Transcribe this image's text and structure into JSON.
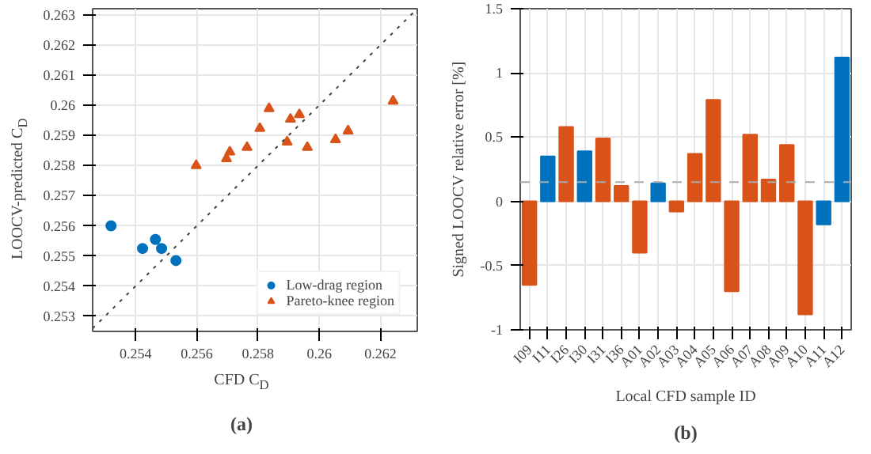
{
  "chart_data": [
    {
      "type": "scatter",
      "xlabel": "CFD C$_{D}$",
      "ylabel": "LOOCV-predicted C$_{D}$",
      "annotations": [
        "(a)"
      ],
      "xlim": [
        0.2526,
        0.2632
      ],
      "ylim": [
        0.2525,
        0.2632
      ],
      "xticks": [
        0.254,
        0.256,
        0.258,
        {
          "value": 0.26,
          "label": "0.26"
        },
        0.262
      ],
      "yticks": [
        0.253,
        0.254,
        0.255,
        0.256,
        0.257,
        0.258,
        0.259,
        {
          "value": 0.26,
          "label": "0.26"
        },
        0.261,
        0.262,
        0.263
      ],
      "grid": true,
      "legend": "bottom right",
      "series": [
        {
          "name": "Low-drag region",
          "color": "#0072bd",
          "marker": "circle",
          "x": [
            0.2532,
            0.25423,
            0.25465,
            0.25485,
            0.25532
          ],
          "values": [
            0.256,
            0.25525,
            0.25555,
            0.25525,
            0.25485
          ]
        },
        {
          "name": "Pareto-knee region",
          "color": "#d95319",
          "marker": "triangle",
          "x": [
            0.25598,
            0.25697,
            0.25708,
            0.25764,
            0.25806,
            0.25836,
            0.25895,
            0.25906,
            0.25935,
            0.25961,
            0.26053,
            0.26094,
            0.26241
          ],
          "values": [
            0.258,
            0.25823,
            0.25845,
            0.2586,
            0.25923,
            0.25989,
            0.25878,
            0.25954,
            0.25969,
            0.2586,
            0.25886,
            0.25915,
            0.26014
          ]
        },
        {
          "type": "line",
          "color": "#404040",
          "line_style": "dotted",
          "x": [
            0.2526,
            0.2632
          ],
          "values": [
            0.2526,
            0.2632
          ]
        }
      ]
    },
    {
      "type": "bar",
      "xlabel": "Local CFD sample ID",
      "ylabel": "Signed LOOCV relative error [%]",
      "annotations": [
        "(b)"
      ],
      "categories": [
        "I09",
        "I11",
        "I26",
        "I30",
        "I31",
        "I36",
        "A01",
        "A02",
        "A03",
        "A04",
        "A05",
        "A06",
        "A07",
        "A08",
        "A09",
        "A10",
        "A11",
        "A12"
      ],
      "values": [
        -0.65,
        0.35,
        0.58,
        0.39,
        0.49,
        0.12,
        -0.4,
        0.14,
        -0.08,
        0.37,
        0.79,
        -0.7,
        0.52,
        0.17,
        0.44,
        -0.88,
        -0.18,
        1.12
      ],
      "colors": [
        "#d95319",
        "#0072bd",
        "#d95319",
        "#0072bd",
        "#d95319",
        "#d95319",
        "#d95319",
        "#0072bd",
        "#d95319",
        "#d95319",
        "#d95319",
        "#d95319",
        "#d95319",
        "#d95319",
        "#d95319",
        "#d95319",
        "#0072bd",
        "#0072bd"
      ],
      "ylim": [
        -1,
        1.5
      ],
      "yticks": [
        -1,
        -0.5,
        0,
        0.5,
        1,
        1.5
      ],
      "grid": true,
      "ref_lines": [
        {
          "axis": "y",
          "value": 0.15,
          "color": "#aaaaaa",
          "line_style": "dashed"
        }
      ]
    }
  ]
}
